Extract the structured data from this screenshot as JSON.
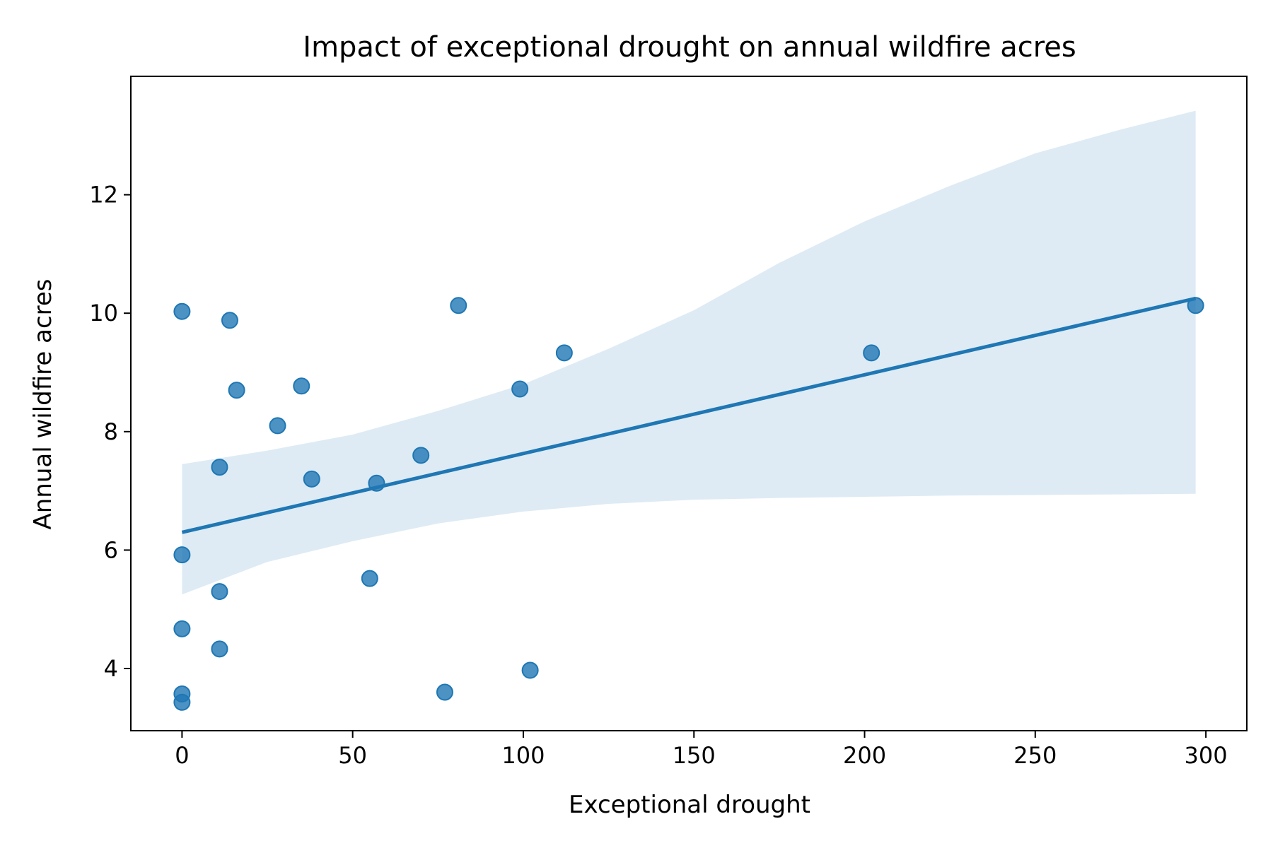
{
  "colors": {
    "point": "#1f77b4",
    "line": "#1f77b4",
    "band": "#1f77b4",
    "axes": "#000000"
  },
  "chart_data": {
    "type": "scatter",
    "title": "Impact of exceptional drought on annual wildfire acres",
    "xlabel": "Exceptional drought",
    "ylabel": "Annual wildfire acres",
    "xlim": [
      -15,
      312
    ],
    "ylim": [
      2.95,
      14.0
    ],
    "xticks": [
      0,
      50,
      100,
      150,
      200,
      250,
      300
    ],
    "yticks": [
      4,
      6,
      8,
      10,
      12
    ],
    "grid": false,
    "legend": "none",
    "points": [
      {
        "x": 0,
        "y": 10.03
      },
      {
        "x": 0,
        "y": 5.92
      },
      {
        "x": 0,
        "y": 4.67
      },
      {
        "x": 0,
        "y": 3.57
      },
      {
        "x": 0,
        "y": 3.43
      },
      {
        "x": 11,
        "y": 7.4
      },
      {
        "x": 11,
        "y": 5.3
      },
      {
        "x": 11,
        "y": 4.33
      },
      {
        "x": 14,
        "y": 9.88
      },
      {
        "x": 16,
        "y": 8.7
      },
      {
        "x": 28,
        "y": 8.1
      },
      {
        "x": 35,
        "y": 8.77
      },
      {
        "x": 38,
        "y": 7.2
      },
      {
        "x": 55,
        "y": 5.52
      },
      {
        "x": 57,
        "y": 7.13
      },
      {
        "x": 70,
        "y": 7.6
      },
      {
        "x": 77,
        "y": 3.6
      },
      {
        "x": 81,
        "y": 10.13
      },
      {
        "x": 99,
        "y": 8.72
      },
      {
        "x": 102,
        "y": 3.97
      },
      {
        "x": 112,
        "y": 9.33
      },
      {
        "x": 202,
        "y": 9.33
      },
      {
        "x": 297,
        "y": 10.13
      }
    ],
    "regression_line": {
      "x": [
        0,
        297
      ],
      "y": [
        6.3,
        10.25
      ]
    },
    "confidence_band": {
      "x": [
        0,
        25,
        50,
        75,
        100,
        125,
        150,
        175,
        200,
        225,
        250,
        275,
        297
      ],
      "lower": [
        5.25,
        5.8,
        6.15,
        6.45,
        6.65,
        6.78,
        6.85,
        6.88,
        6.9,
        6.92,
        6.93,
        6.94,
        6.95
      ],
      "upper": [
        7.45,
        7.68,
        7.95,
        8.35,
        8.8,
        9.4,
        10.05,
        10.85,
        11.55,
        12.15,
        12.7,
        13.1,
        13.42
      ]
    }
  }
}
